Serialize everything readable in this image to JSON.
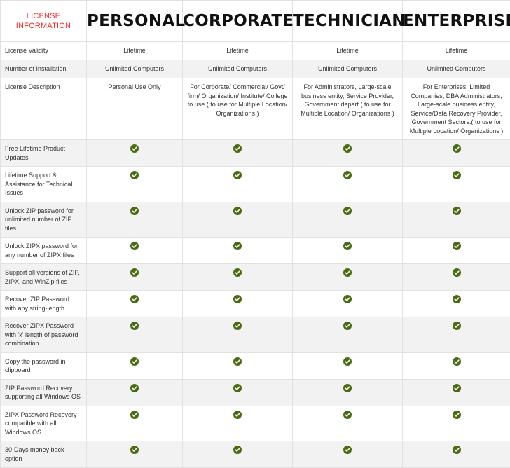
{
  "header": {
    "label": "LICENSE INFORMATION",
    "plans": [
      "PERSONAL",
      "CORPORATE",
      "TECHNICIAN",
      "ENTERPRISE"
    ]
  },
  "colors": {
    "accent": "#e8302f",
    "check": "#4a6a14",
    "row_alt": "#f2f2f2",
    "border": "#e2e2e2"
  },
  "icons": {
    "check": "check-circle-icon"
  },
  "rows": [
    {
      "feature": "License Validity",
      "values": [
        "Lifetime",
        "Lifetime",
        "Lifetime",
        "Lifetime"
      ]
    },
    {
      "feature": "Number of Installation",
      "values": [
        "Unlimited Computers",
        "Unlimited Computers",
        "Unlimited Computers",
        "Unlimited Computers"
      ]
    },
    {
      "feature": "License Description",
      "values": [
        "Personal Use Only",
        "For Corporate/ Commercial/ Govt/ firm/ Organization/ Institute/ College to use ( to use for Multiple Location/ Organizations )",
        "For Administrators, Large-scale business entity, Service Provider, Government depart.( to use for Multiple Location/ Organizations )",
        "For Enterprises, Limited Companies, DBA Administrators, Large-scale business entity, Service/Data Recovery Provider, Government Sectors.( to use for Multiple Location/ Organizations )"
      ]
    },
    {
      "feature": "Free Lifetime Product Updates",
      "values": [
        true,
        true,
        true,
        true
      ]
    },
    {
      "feature": "Lifetime Support & Assistance for Technical Issues",
      "values": [
        true,
        true,
        true,
        true
      ]
    },
    {
      "feature": "Unlock ZIP password for unlimited number of ZIP files",
      "values": [
        true,
        true,
        true,
        true
      ]
    },
    {
      "feature": "Unlock ZIPX password for any number of ZIPX files",
      "values": [
        true,
        true,
        true,
        true
      ]
    },
    {
      "feature": "Support all versions of ZIP, ZIPX, and WinZip files",
      "values": [
        true,
        true,
        true,
        true
      ]
    },
    {
      "feature": "Recover ZIP Password with any string-length",
      "values": [
        true,
        true,
        true,
        true
      ]
    },
    {
      "feature": "Recover ZIPX Password with 'x' length of password combination",
      "values": [
        true,
        true,
        true,
        true
      ]
    },
    {
      "feature": "Copy the password in clipboard",
      "values": [
        true,
        true,
        true,
        true
      ]
    },
    {
      "feature": "ZIP Password Recovery supporting all Windows OS",
      "values": [
        true,
        true,
        true,
        true
      ]
    },
    {
      "feature": "ZIPX Password Recovery compatible with all Windows OS",
      "values": [
        true,
        true,
        true,
        true
      ]
    },
    {
      "feature": "30-Days money back option",
      "values": [
        true,
        true,
        true,
        true
      ]
    }
  ]
}
